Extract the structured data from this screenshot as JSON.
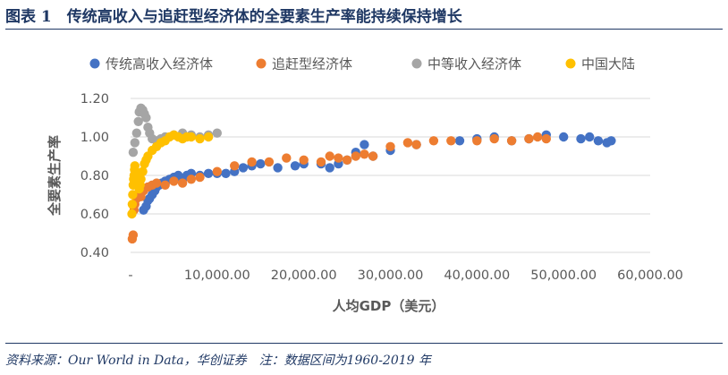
{
  "figure": {
    "title": "图表 1　传统高收入与追赶型经济体的全要素生产率能持续保持增长",
    "source": "资料来源：Our World in Data，华创证券　注：数据区间为1960-2019 年"
  },
  "chart_data": {
    "type": "scatter",
    "title": "",
    "xlabel": "人均GDP（美元）",
    "ylabel": "全要素生产率",
    "xlim": [
      0,
      60000
    ],
    "ylim": [
      0.4,
      1.2
    ],
    "x_ticks": [
      0,
      10000,
      20000,
      30000,
      40000,
      50000,
      60000
    ],
    "x_tick_labels": [
      "-",
      "10,000.00",
      "20,000.00",
      "30,000.00",
      "40,000.00",
      "50,000.00",
      "60,000.00"
    ],
    "y_ticks": [
      0.4,
      0.6,
      0.8,
      1.0,
      1.2
    ],
    "y_tick_labels": [
      "0.40",
      "0.60",
      "0.80",
      "1.00",
      "1.20"
    ],
    "grid": "horizontal",
    "legend_position": "top",
    "series": [
      {
        "name": "传统高收入经济体",
        "color": "#4472C4",
        "points": [
          [
            1500,
            0.62
          ],
          [
            1800,
            0.64
          ],
          [
            2000,
            0.67
          ],
          [
            2200,
            0.68
          ],
          [
            2500,
            0.7
          ],
          [
            2800,
            0.72
          ],
          [
            3000,
            0.74
          ],
          [
            3300,
            0.75
          ],
          [
            3600,
            0.76
          ],
          [
            4000,
            0.77
          ],
          [
            4500,
            0.78
          ],
          [
            5000,
            0.79
          ],
          [
            5500,
            0.8
          ],
          [
            6000,
            0.78
          ],
          [
            6500,
            0.8
          ],
          [
            7000,
            0.81
          ],
          [
            8000,
            0.8
          ],
          [
            9000,
            0.81
          ],
          [
            10000,
            0.81
          ],
          [
            11000,
            0.81
          ],
          [
            12000,
            0.82
          ],
          [
            13000,
            0.84
          ],
          [
            14000,
            0.85
          ],
          [
            15000,
            0.86
          ],
          [
            17000,
            0.84
          ],
          [
            19000,
            0.85
          ],
          [
            20000,
            0.86
          ],
          [
            22000,
            0.86
          ],
          [
            23000,
            0.84
          ],
          [
            24000,
            0.86
          ],
          [
            25000,
            0.88
          ],
          [
            26000,
            0.92
          ],
          [
            27000,
            0.96
          ],
          [
            28000,
            0.9
          ],
          [
            30000,
            0.93
          ],
          [
            33000,
            0.96
          ],
          [
            38000,
            0.98
          ],
          [
            40000,
            0.99
          ],
          [
            42000,
            1.0
          ],
          [
            44000,
            0.98
          ],
          [
            46000,
            0.99
          ],
          [
            48000,
            1.01
          ],
          [
            50000,
            1.0
          ],
          [
            52000,
            0.99
          ],
          [
            53000,
            1.0
          ],
          [
            54000,
            0.98
          ],
          [
            55000,
            0.97
          ],
          [
            55500,
            0.98
          ]
        ]
      },
      {
        "name": "追赶型经济体",
        "color": "#ED7D31",
        "points": [
          [
            200,
            0.47
          ],
          [
            300,
            0.49
          ],
          [
            400,
            0.62
          ],
          [
            500,
            0.65
          ],
          [
            700,
            0.68
          ],
          [
            1000,
            0.7
          ],
          [
            1200,
            0.69
          ],
          [
            1500,
            0.72
          ],
          [
            2000,
            0.74
          ],
          [
            2500,
            0.75
          ],
          [
            3000,
            0.76
          ],
          [
            4000,
            0.75
          ],
          [
            5000,
            0.77
          ],
          [
            6000,
            0.76
          ],
          [
            7000,
            0.78
          ],
          [
            8000,
            0.79
          ],
          [
            10000,
            0.82
          ],
          [
            12000,
            0.85
          ],
          [
            14000,
            0.87
          ],
          [
            16000,
            0.87
          ],
          [
            18000,
            0.89
          ],
          [
            20000,
            0.88
          ],
          [
            22000,
            0.87
          ],
          [
            23000,
            0.9
          ],
          [
            24000,
            0.89
          ],
          [
            25000,
            0.88
          ],
          [
            26000,
            0.9
          ],
          [
            27000,
            0.91
          ],
          [
            28000,
            0.9
          ],
          [
            30000,
            0.95
          ],
          [
            32000,
            0.97
          ],
          [
            33000,
            0.96
          ],
          [
            35000,
            0.98
          ],
          [
            37000,
            0.98
          ],
          [
            40000,
            0.98
          ],
          [
            42000,
            0.99
          ],
          [
            44000,
            0.98
          ],
          [
            46000,
            0.99
          ],
          [
            47000,
            1.0
          ],
          [
            48000,
            0.99
          ]
        ]
      },
      {
        "name": "中等收入经济体",
        "color": "#A5A5A5",
        "points": [
          [
            300,
            0.92
          ],
          [
            500,
            0.97
          ],
          [
            700,
            1.02
          ],
          [
            900,
            1.08
          ],
          [
            1000,
            1.13
          ],
          [
            1200,
            1.15
          ],
          [
            1400,
            1.14
          ],
          [
            1600,
            1.12
          ],
          [
            1800,
            1.1
          ],
          [
            2000,
            1.05
          ],
          [
            2200,
            1.02
          ],
          [
            2500,
            0.99
          ],
          [
            3000,
            0.98
          ],
          [
            3500,
            0.99
          ],
          [
            4000,
            1.0
          ],
          [
            5000,
            1.01
          ],
          [
            6000,
            1.02
          ],
          [
            7000,
            1.01
          ],
          [
            8000,
            1.0
          ],
          [
            9000,
            1.01
          ],
          [
            10000,
            1.02
          ]
        ]
      },
      {
        "name": "中国大陆",
        "color": "#FFC000",
        "points": [
          [
            150,
            0.6
          ],
          [
            200,
            0.65
          ],
          [
            250,
            0.7
          ],
          [
            300,
            0.75
          ],
          [
            350,
            0.78
          ],
          [
            400,
            0.8
          ],
          [
            450,
            0.83
          ],
          [
            500,
            0.85
          ],
          [
            600,
            0.82
          ],
          [
            700,
            0.8
          ],
          [
            800,
            0.78
          ],
          [
            900,
            0.75
          ],
          [
            1000,
            0.73
          ],
          [
            1100,
            0.75
          ],
          [
            1200,
            0.78
          ],
          [
            1400,
            0.82
          ],
          [
            1600,
            0.86
          ],
          [
            1800,
            0.88
          ],
          [
            2000,
            0.9
          ],
          [
            2500,
            0.93
          ],
          [
            3000,
            0.95
          ],
          [
            3500,
            0.97
          ],
          [
            4000,
            0.98
          ],
          [
            4500,
            1.0
          ],
          [
            5000,
            1.01
          ],
          [
            5500,
            1.0
          ],
          [
            6000,
            0.99
          ],
          [
            6500,
            1.0
          ],
          [
            7000,
            1.0
          ],
          [
            8000,
            0.99
          ],
          [
            9000,
            1.0
          ]
        ]
      }
    ]
  }
}
